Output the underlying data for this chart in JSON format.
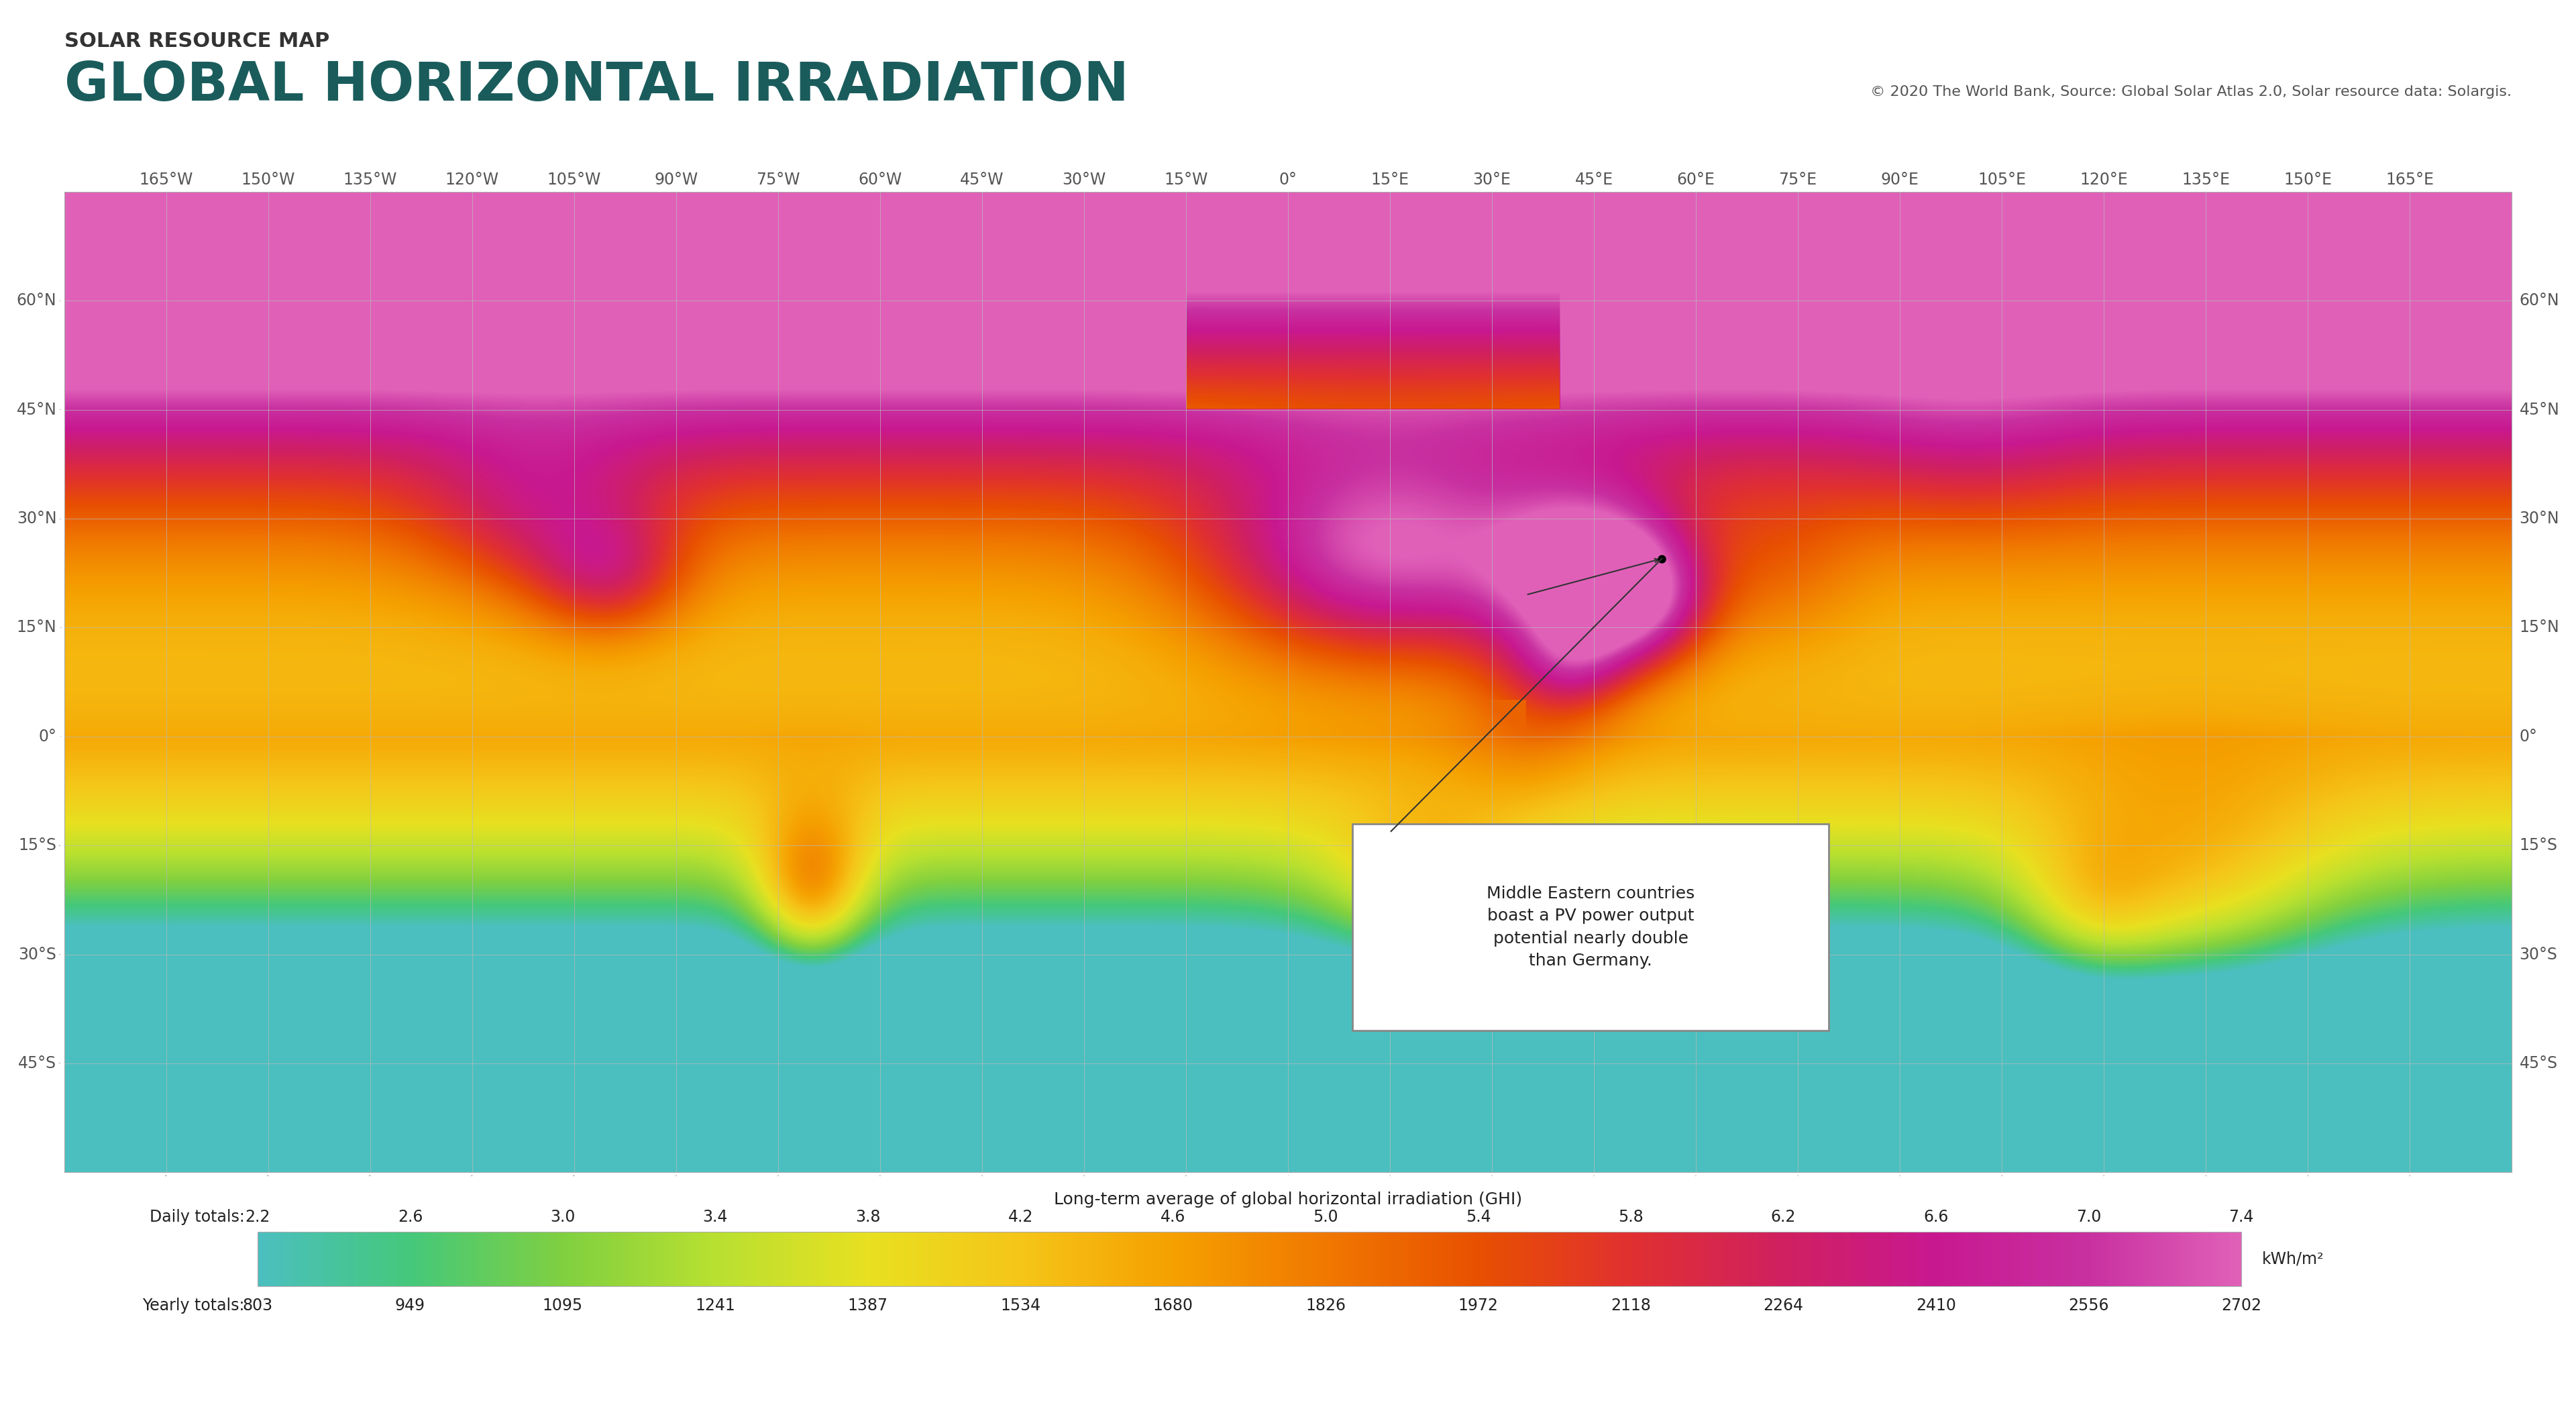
{
  "title_small": "SOLAR RESOURCE MAP",
  "title_large": "GLOBAL HORIZONTAL IRRADIATION",
  "copyright_text": "© 2020 The World Bank, Source: Global Solar Atlas 2.0, Solar resource data: Solargis.",
  "legend_title": "Long-term average of global horizontal irradiation (GHI)",
  "daily_label": "Daily totals:",
  "yearly_label": "Yearly totals:",
  "daily_values": [
    "2.2",
    "2.6",
    "3.0",
    "3.4",
    "3.8",
    "4.2",
    "4.6",
    "5.0",
    "5.4",
    "5.8",
    "6.2",
    "6.6",
    "7.0",
    "7.4"
  ],
  "yearly_values": [
    "803",
    "949",
    "1095",
    "1241",
    "1387",
    "1534",
    "1680",
    "1826",
    "1972",
    "2118",
    "2264",
    "2410",
    "2556",
    "2702"
  ],
  "vmin": 2.2,
  "vmax": 7.4,
  "unit": "kWh/m²",
  "colorbar_colors": [
    "#4BBFBF",
    "#45C87A",
    "#80D040",
    "#B8E030",
    "#E8E020",
    "#F5C518",
    "#F5A000",
    "#F07800",
    "#E85000",
    "#E03030",
    "#D02060",
    "#C81890",
    "#C830A0",
    "#E060B8"
  ],
  "annotation_text": "Middle Eastern countries\nboast a PV power output\npotential nearly double\nthan Germany.",
  "dot_lon": 55.0,
  "dot_lat": 24.5,
  "background_color": "#FFFFFF",
  "map_bg_color": "#E8EEF4",
  "ocean_color": "#DCE8F0",
  "title_color": "#1A5C5C",
  "title_small_color": "#333333",
  "copyright_color": "#555555",
  "grid_color": "#BBBBBB",
  "border_color": "#555555",
  "lon_min": -180,
  "lon_max": 180,
  "lat_min": -60,
  "lat_max": 75,
  "lon_ticks": [
    -165,
    -150,
    -135,
    -120,
    -105,
    -90,
    -75,
    -60,
    -45,
    -30,
    -15,
    0,
    15,
    30,
    45,
    60,
    75,
    90,
    105,
    120,
    135,
    150,
    165
  ],
  "lat_ticks": [
    60,
    45,
    30,
    15,
    0,
    -15,
    -30,
    -45
  ]
}
